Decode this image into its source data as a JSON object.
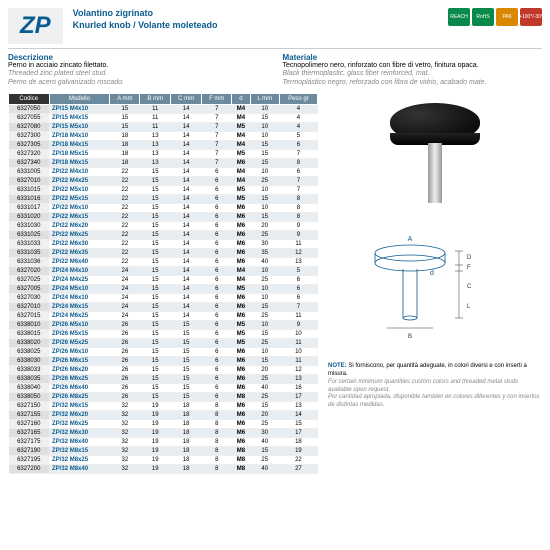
{
  "header": {
    "code": "ZP",
    "name_it": "Volantino zigrinato",
    "name_en": "Knurled knob / Volante moleteado"
  },
  "badges": [
    "REACH",
    "RoHS",
    "PA6",
    "+100°/-30°"
  ],
  "desc": {
    "label": "Descrizione",
    "it": "Perno in acciaio zincato filettato.",
    "en": "Threaded zinc plated steel stud.",
    "es": "Perno de acero galvanizado roscado."
  },
  "mat": {
    "label": "Materiale",
    "it": "Tecnopolimero nero, rinforzato con fibre di vetro, finitura opaca.",
    "en": "Black thermoplastic, glass fiber reinforced, mat.",
    "es": "Termoplástico negro, reforzado con fibra de vidrio, acabado mate."
  },
  "thead": [
    "Codice",
    "Modello",
    "A mm",
    "B mm",
    "C mm",
    "F mm",
    "d",
    "L mm",
    "Peso gr"
  ],
  "rows": [
    [
      "6327050",
      "ZP/15 M4x10",
      "15",
      "11",
      "14",
      "7",
      "M4",
      "10",
      "4"
    ],
    [
      "6327055",
      "ZP/15 M4x15",
      "15",
      "11",
      "14",
      "7",
      "M4",
      "15",
      "4"
    ],
    [
      "6327080",
      "ZP/15 M5x10",
      "15",
      "11",
      "14",
      "7",
      "M5",
      "10",
      "4"
    ],
    [
      "6327300",
      "ZP/18 M4x10",
      "18",
      "13",
      "14",
      "7",
      "M4",
      "10",
      "5"
    ],
    [
      "6327305",
      "ZP/18 M4x15",
      "18",
      "13",
      "14",
      "7",
      "M4",
      "15",
      "6"
    ],
    [
      "6327320",
      "ZP/18 M5x15",
      "18",
      "13",
      "14",
      "7",
      "M5",
      "15",
      "7"
    ],
    [
      "6327340",
      "ZP/18 M6x15",
      "18",
      "13",
      "14",
      "7",
      "M6",
      "15",
      "8"
    ],
    [
      "6331005",
      "ZP/22 M4x10",
      "22",
      "15",
      "14",
      "6",
      "M4",
      "10",
      "6"
    ],
    [
      "6327010",
      "ZP/22 M4x25",
      "22",
      "15",
      "14",
      "6",
      "M4",
      "25",
      "7"
    ],
    [
      "6331015",
      "ZP/22 M5x10",
      "22",
      "15",
      "14",
      "6",
      "M5",
      "10",
      "7"
    ],
    [
      "6331016",
      "ZP/22 M5x15",
      "22",
      "15",
      "14",
      "6",
      "M5",
      "15",
      "8"
    ],
    [
      "6331017",
      "ZP/22 M6x10",
      "22",
      "15",
      "14",
      "6",
      "M6",
      "10",
      "8"
    ],
    [
      "6331020",
      "ZP/22 M6x15",
      "22",
      "15",
      "14",
      "6",
      "M6",
      "15",
      "8"
    ],
    [
      "6331030",
      "ZP/22 M6x20",
      "22",
      "15",
      "14",
      "6",
      "M6",
      "20",
      "9"
    ],
    [
      "6331025",
      "ZP/22 M6x25",
      "22",
      "15",
      "14",
      "6",
      "M6",
      "25",
      "9"
    ],
    [
      "6331033",
      "ZP/22 M6x30",
      "22",
      "15",
      "14",
      "6",
      "M6",
      "30",
      "11"
    ],
    [
      "6331035",
      "ZP/22 M6x35",
      "22",
      "15",
      "14",
      "6",
      "M6",
      "35",
      "12"
    ],
    [
      "6331036",
      "ZP/22 M6x40",
      "22",
      "15",
      "14",
      "6",
      "M6",
      "40",
      "13"
    ],
    [
      "6327020",
      "ZP/24 M4x10",
      "24",
      "15",
      "14",
      "6",
      "M4",
      "10",
      "5"
    ],
    [
      "6327025",
      "ZP/24 M4x25",
      "24",
      "15",
      "14",
      "6",
      "M4",
      "25",
      "6"
    ],
    [
      "6327005",
      "ZP/24 M5x10",
      "24",
      "15",
      "14",
      "6",
      "M5",
      "10",
      "6"
    ],
    [
      "6327030",
      "ZP/24 M6x10",
      "24",
      "15",
      "14",
      "6",
      "M6",
      "10",
      "6"
    ],
    [
      "6327010",
      "ZP/24 M6x15",
      "24",
      "15",
      "14",
      "6",
      "M6",
      "15",
      "7"
    ],
    [
      "6327015",
      "ZP/24 M6x25",
      "24",
      "15",
      "14",
      "6",
      "M6",
      "25",
      "11"
    ],
    [
      "6338010",
      "ZP/26 M5x10",
      "26",
      "15",
      "15",
      "6",
      "M5",
      "10",
      "9"
    ],
    [
      "6338015",
      "ZP/26 M5x15",
      "26",
      "15",
      "15",
      "6",
      "M5",
      "15",
      "10"
    ],
    [
      "6338020",
      "ZP/26 M5x25",
      "26",
      "15",
      "15",
      "6",
      "M5",
      "25",
      "11"
    ],
    [
      "6338025",
      "ZP/26 M6x10",
      "26",
      "15",
      "15",
      "6",
      "M6",
      "10",
      "10"
    ],
    [
      "6338030",
      "ZP/26 M6x15",
      "26",
      "15",
      "15",
      "6",
      "M6",
      "15",
      "11"
    ],
    [
      "6338033",
      "ZP/26 M6x20",
      "26",
      "15",
      "15",
      "6",
      "M6",
      "20",
      "12"
    ],
    [
      "6338035",
      "ZP/26 M6x25",
      "26",
      "15",
      "15",
      "6",
      "M6",
      "25",
      "13"
    ],
    [
      "6338040",
      "ZP/26 M6x40",
      "26",
      "15",
      "15",
      "6",
      "M6",
      "40",
      "16"
    ],
    [
      "6338050",
      "ZP/26 M8x25",
      "26",
      "15",
      "15",
      "6",
      "M8",
      "25",
      "17"
    ],
    [
      "6327150",
      "ZP/32 M6x15",
      "32",
      "19",
      "18",
      "8",
      "M6",
      "15",
      "13"
    ],
    [
      "6327155",
      "ZP/32 M6x20",
      "32",
      "19",
      "18",
      "8",
      "M6",
      "20",
      "14"
    ],
    [
      "6327160",
      "ZP/32 M6x25",
      "32",
      "19",
      "18",
      "8",
      "M6",
      "25",
      "15"
    ],
    [
      "6327165",
      "ZP/32 M6x30",
      "32",
      "19",
      "18",
      "8",
      "M6",
      "30",
      "17"
    ],
    [
      "6327175",
      "ZP/32 M6x40",
      "32",
      "19",
      "18",
      "8",
      "M6",
      "40",
      "18"
    ],
    [
      "6327190",
      "ZP/32 M8x15",
      "32",
      "19",
      "18",
      "8",
      "M8",
      "15",
      "19"
    ],
    [
      "6327195",
      "ZP/32 M8x25",
      "32",
      "19",
      "18",
      "8",
      "M8",
      "25",
      "22"
    ],
    [
      "6327200",
      "ZP/32 M8x40",
      "32",
      "19",
      "18",
      "8",
      "M8",
      "40",
      "27"
    ]
  ],
  "note": {
    "label": "NOTE:",
    "it": "Si forniscono, per quantità adeguate, in colori diversi e con inserti a misura.",
    "en": "For certain minimum quantities custom colors and threaded metal studs available upon request.",
    "es": "Por cantidad apropiada, disponible también en colores diferentes y con insertos de distintas medidas."
  },
  "diagram": {
    "labels": [
      "A",
      "d",
      "D",
      "F",
      "C",
      "L",
      "B"
    ]
  }
}
